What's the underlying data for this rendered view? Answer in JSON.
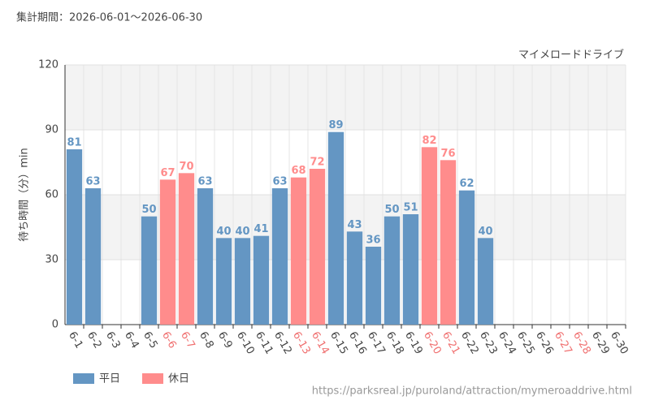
{
  "chart_data": {
    "type": "bar",
    "title": "集計期間：2026-06-01～2026-06-30",
    "subtitle": "マイメロードドライブ",
    "y_label": "待ち時間（分）min",
    "source": "https://parksreal.jp/puroland/attraction/mymeroaddrive.html",
    "categories": [
      "6-1",
      "6-2",
      "6-3",
      "6-4",
      "6-5",
      "6-6",
      "6-7",
      "6-8",
      "6-9",
      "6-10",
      "6-11",
      "6-12",
      "6-13",
      "6-14",
      "6-15",
      "6-16",
      "6-17",
      "6-18",
      "6-19",
      "6-20",
      "6-21",
      "6-22",
      "6-23",
      "6-24",
      "6-25",
      "6-26",
      "6-27",
      "6-28",
      "6-29",
      "6-30"
    ],
    "label_colors": [
      "#444",
      "#444",
      "#444",
      "#444",
      "#444",
      "#f07070",
      "#f07070",
      "#444",
      "#444",
      "#444",
      "#444",
      "#444",
      "#f07070",
      "#f07070",
      "#444",
      "#444",
      "#444",
      "#444",
      "#444",
      "#f07070",
      "#f07070",
      "#444",
      "#444",
      "#444",
      "#444",
      "#444",
      "#f07070",
      "#f07070",
      "#444",
      "#444"
    ],
    "series": [
      {
        "name": "平日",
        "color": "#6496c3",
        "values": [
          81,
          63,
          null,
          null,
          50,
          null,
          null,
          63,
          40,
          40,
          41,
          63,
          null,
          null,
          89,
          43,
          36,
          50,
          51,
          null,
          null,
          62,
          40,
          null,
          null,
          null,
          null,
          null,
          null,
          null
        ]
      },
      {
        "name": "休日",
        "color": "#ff8c8c",
        "values": [
          null,
          null,
          null,
          null,
          null,
          67,
          70,
          null,
          null,
          null,
          null,
          null,
          68,
          72,
          null,
          null,
          null,
          null,
          null,
          82,
          76,
          null,
          null,
          null,
          null,
          null,
          null,
          null,
          null,
          null
        ]
      }
    ],
    "ylim": [
      0,
      120
    ],
    "yticks": [
      0,
      30,
      60,
      90,
      120
    ],
    "grid": true
  }
}
